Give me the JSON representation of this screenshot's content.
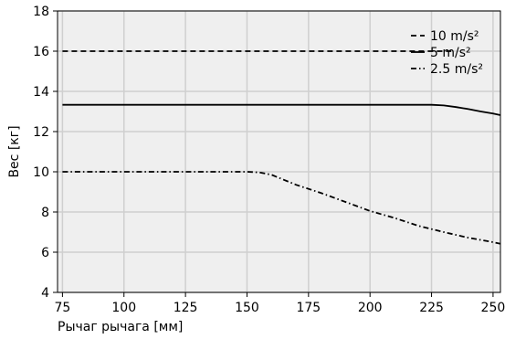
{
  "chart_data": {
    "type": "line",
    "title": "",
    "xlabel": "Рычаг рычага [мм]",
    "ylabel": "Вес [кг]",
    "xlim": [
      73,
      253
    ],
    "ylim": [
      4,
      18
    ],
    "xticks": [
      75,
      100,
      125,
      150,
      175,
      200,
      225,
      250
    ],
    "yticks": [
      4,
      6,
      8,
      10,
      12,
      14,
      16,
      18
    ],
    "grid": true,
    "legend_position": "top-right",
    "series": [
      {
        "name": "10 m/s²",
        "dash": "dashed",
        "x": [
          75,
          100,
          125,
          150,
          175,
          200,
          225,
          233
        ],
        "y": [
          16,
          16,
          16,
          16,
          16,
          16,
          16,
          16
        ]
      },
      {
        "name": "5 m/s²",
        "dash": "solid",
        "x": [
          75,
          100,
          125,
          150,
          175,
          200,
          225,
          230,
          235,
          240,
          245,
          250,
          253
        ],
        "y": [
          13.33,
          13.33,
          13.33,
          13.33,
          13.33,
          13.33,
          13.33,
          13.3,
          13.22,
          13.12,
          13.0,
          12.9,
          12.82
        ]
      },
      {
        "name": "2.5 m/s²",
        "dash": "dashdot",
        "x": [
          75,
          100,
          125,
          150,
          155,
          160,
          165,
          170,
          175,
          180,
          190,
          200,
          210,
          220,
          230,
          240,
          250,
          253
        ],
        "y": [
          10,
          10,
          10,
          10,
          9.97,
          9.85,
          9.6,
          9.35,
          9.15,
          8.95,
          8.5,
          8.05,
          7.7,
          7.3,
          7.0,
          6.72,
          6.5,
          6.42
        ]
      }
    ]
  }
}
